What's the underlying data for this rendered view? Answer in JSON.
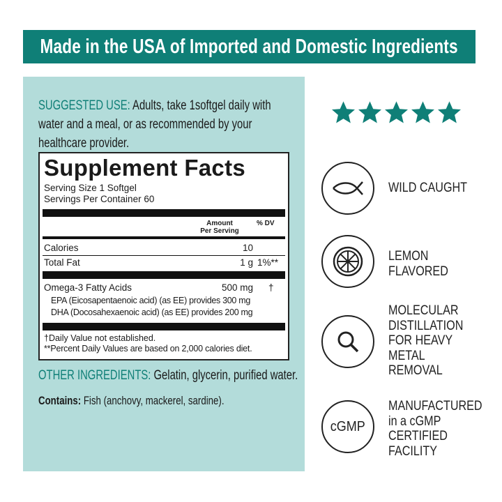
{
  "header": {
    "title": "Made in the USA of Imported and Domestic Ingredients"
  },
  "suggested_use": {
    "label": "SUGGESTED USE:",
    "text": " Adults, take 1softgel daily with water and a meal, or as recommended by your healthcare provider."
  },
  "facts": {
    "title": "Supplement Facts",
    "serving_size": "Serving Size 1 Softgel",
    "servings_per_container": "Servings Per Container 60",
    "col_amount_1": "Amount",
    "col_amount_2": "Per Serving",
    "col_dv": "% DV",
    "rows": [
      {
        "name": "Calories",
        "amount": "10",
        "dv": ""
      },
      {
        "name": "Total Fat",
        "amount": "1 g",
        "dv": "1%**"
      },
      {
        "name": "Omega-3 Fatty Acids",
        "amount": "500 mg",
        "dv": "†"
      }
    ],
    "sub_rows": [
      "EPA (Eicosapentaenoic acid) (as EE) provides 300 mg",
      "DHA (Docosahexaenoic acid) (as EE) provides 200 mg"
    ],
    "footnote_1": "†Daily Value not established.",
    "footnote_2": "**Percent Daily Values are based on 2,000 calories diet."
  },
  "other_ingredients": {
    "label": "OTHER INGREDIENTS:",
    "text": " Gelatin, glycerin, purified water."
  },
  "contains": {
    "label": "Contains:",
    "text": " Fish (anchovy, mackerel, sardine)."
  },
  "rating": {
    "stars": 5,
    "max": 5,
    "color": "#0f7f77"
  },
  "features": [
    {
      "icon": "fish-icon",
      "lines": [
        "WILD CAUGHT"
      ]
    },
    {
      "icon": "lemon-icon",
      "lines": [
        "LEMON",
        "FLAVORED"
      ]
    },
    {
      "icon": "magnifier-icon",
      "lines": [
        "MOLECULAR",
        "DISTILLATION",
        "FOR HEAVY",
        "METAL",
        "REMOVAL"
      ]
    },
    {
      "icon": "cgmp-icon",
      "icon_text": "cGMP",
      "lines": [
        "MANUFACTURED",
        "in a cGMP",
        "CERTIFIED",
        "FACILITY"
      ]
    }
  ],
  "colors": {
    "brand": "#0f7f77",
    "panel": "#b3dcda"
  }
}
